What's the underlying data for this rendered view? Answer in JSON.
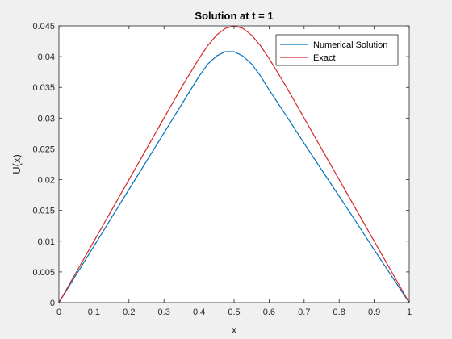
{
  "chart_data": {
    "type": "line",
    "title": "Solution at t = 1",
    "xlabel": "x",
    "ylabel": "U(x)",
    "xlim": [
      0,
      1
    ],
    "ylim": [
      0,
      0.045
    ],
    "xticks": [
      0,
      0.1,
      0.2,
      0.3,
      0.4,
      0.5,
      0.6,
      0.7,
      0.8,
      0.9,
      1
    ],
    "yticks": [
      0,
      0.005,
      0.01,
      0.015,
      0.02,
      0.025,
      0.03,
      0.035,
      0.04,
      0.045
    ],
    "xtick_labels": [
      "0",
      "0.1",
      "0.2",
      "0.3",
      "0.4",
      "0.5",
      "0.6",
      "0.7",
      "0.8",
      "0.9",
      "1"
    ],
    "ytick_labels": [
      "0",
      "0.005",
      "0.01",
      "0.015",
      "0.02",
      "0.025",
      "0.03",
      "0.035",
      "0.04",
      "0.045"
    ],
    "grid": false,
    "legend_position": "top-right",
    "series": [
      {
        "name": "Numerical Solution",
        "color": "#0072BD",
        "x": [
          0,
          0.05,
          0.1,
          0.15,
          0.2,
          0.25,
          0.3,
          0.35,
          0.4,
          0.425,
          0.45,
          0.475,
          0.5,
          0.525,
          0.55,
          0.575,
          0.6,
          0.65,
          0.7,
          0.75,
          0.8,
          0.85,
          0.9,
          0.95,
          1
        ],
        "y": [
          0,
          0.0046,
          0.0092,
          0.0138,
          0.0184,
          0.023,
          0.0276,
          0.0322,
          0.0368,
          0.0388,
          0.0401,
          0.0408,
          0.0408,
          0.0401,
          0.0388,
          0.0369,
          0.0346,
          0.0303,
          0.0259,
          0.0216,
          0.0173,
          0.013,
          0.0086,
          0.0043,
          0
        ]
      },
      {
        "name": "Exact",
        "color": "#D62728",
        "x": [
          0,
          0.05,
          0.1,
          0.15,
          0.2,
          0.25,
          0.3,
          0.35,
          0.4,
          0.425,
          0.45,
          0.475,
          0.5,
          0.525,
          0.55,
          0.575,
          0.6,
          0.65,
          0.7,
          0.75,
          0.8,
          0.85,
          0.9,
          0.95,
          1
        ],
        "y": [
          0,
          0.005,
          0.01,
          0.015,
          0.02,
          0.025,
          0.03,
          0.035,
          0.0397,
          0.0418,
          0.0435,
          0.0446,
          0.045,
          0.0446,
          0.0435,
          0.0418,
          0.0397,
          0.035,
          0.03,
          0.025,
          0.02,
          0.015,
          0.01,
          0.005,
          0
        ]
      }
    ]
  }
}
